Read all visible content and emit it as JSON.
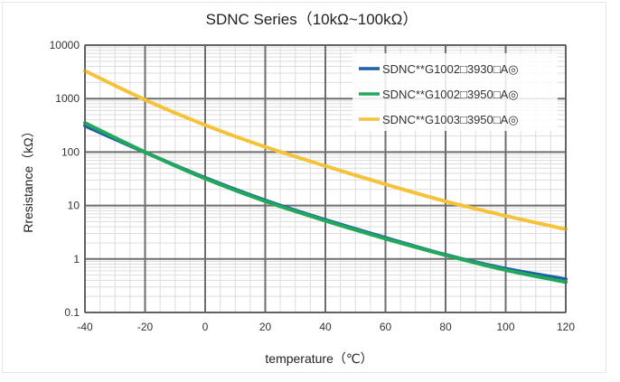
{
  "chart_data": {
    "type": "line",
    "title": "SDNC Series（10kΩ~100kΩ）",
    "xlabel": "temperature（℃）",
    "ylabel": "Rresistance（kΩ）",
    "x_scale": "linear",
    "y_scale": "log",
    "xlim": [
      -40,
      120
    ],
    "ylim": [
      0.1,
      10000
    ],
    "x_ticks": [
      "-40",
      "-20",
      "0",
      "20",
      "40",
      "60",
      "80",
      "100",
      "120"
    ],
    "y_ticks": [
      "0.1",
      "1",
      "10",
      "100",
      "1000",
      "10000"
    ],
    "grid": true,
    "legend_position": "top-right",
    "x": [
      -40,
      -20,
      0,
      20,
      40,
      60,
      80,
      100,
      120
    ],
    "series": [
      {
        "name": "SDNC**G1002□3930□A◎",
        "color": "#1f5fa8",
        "values": [
          310,
          99,
          33,
          12.5,
          5.4,
          2.5,
          1.2,
          0.66,
          0.42
        ]
      },
      {
        "name": "SDNC**G1002□3950□A◎",
        "color": "#22a85a",
        "values": [
          350,
          100,
          32,
          12,
          5.2,
          2.4,
          1.18,
          0.62,
          0.37
        ]
      },
      {
        "name": "SDNC**G1003□3950□A◎",
        "color": "#f5c23a",
        "values": [
          3300,
          950,
          320,
          125,
          55,
          25,
          12,
          6.4,
          3.6
        ]
      }
    ]
  }
}
